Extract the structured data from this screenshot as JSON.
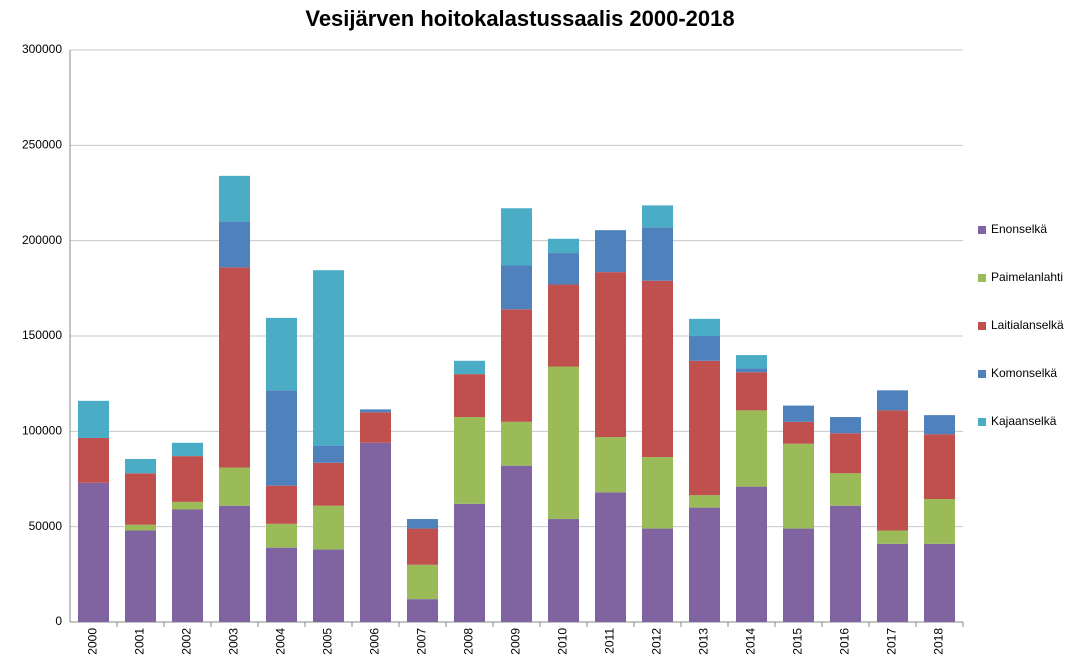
{
  "chart_data": {
    "type": "stacked_bar",
    "title": "Vesijärven hoitokalastussaalis 2000-2018",
    "categories": [
      "2000",
      "2001",
      "2002",
      "2003",
      "2004",
      "2005",
      "2006",
      "2007",
      "2008",
      "2009",
      "2010",
      "2011",
      "2012",
      "2013",
      "2014",
      "2015",
      "2016",
      "2017",
      "2018"
    ],
    "series": [
      {
        "name": "Enonselkä",
        "color": "#8064a2",
        "values": [
          73000,
          48000,
          59000,
          61000,
          39000,
          38000,
          94000,
          12000,
          62000,
          82000,
          54000,
          68000,
          49000,
          60000,
          71000,
          49000,
          61000,
          41000,
          41000
        ]
      },
      {
        "name": "Paimelanlahti",
        "color": "#9bbb59",
        "values": [
          0,
          3000,
          4000,
          20000,
          12500,
          23000,
          0,
          18000,
          45500,
          23000,
          80000,
          29000,
          37500,
          6500,
          40000,
          44500,
          17000,
          7000,
          23500
        ]
      },
      {
        "name": "Laitialanselkä",
        "color": "#c0504d",
        "values": [
          23500,
          27000,
          24000,
          105000,
          20000,
          22500,
          16000,
          19000,
          22500,
          59000,
          43000,
          86500,
          92500,
          70500,
          20000,
          11500,
          21000,
          63000,
          34000
        ]
      },
      {
        "name": "Komonselkä",
        "color": "#4f81bd",
        "values": [
          0,
          0,
          0,
          24000,
          50000,
          9000,
          1500,
          5000,
          0,
          23000,
          16500,
          22000,
          28000,
          13000,
          2000,
          8500,
          8500,
          10500,
          10000
        ]
      },
      {
        "name": "Kajaanselkä",
        "color": "#4bacc6",
        "values": [
          19500,
          7500,
          7000,
          24000,
          38000,
          92000,
          0,
          0,
          7000,
          30000,
          7500,
          0,
          11500,
          9000,
          7000,
          0,
          0,
          0,
          0
        ]
      }
    ],
    "ylim": [
      0,
      300000
    ],
    "yticks": [
      0,
      50000,
      100000,
      150000,
      200000,
      250000,
      300000
    ],
    "grid": true,
    "legend": "right"
  }
}
